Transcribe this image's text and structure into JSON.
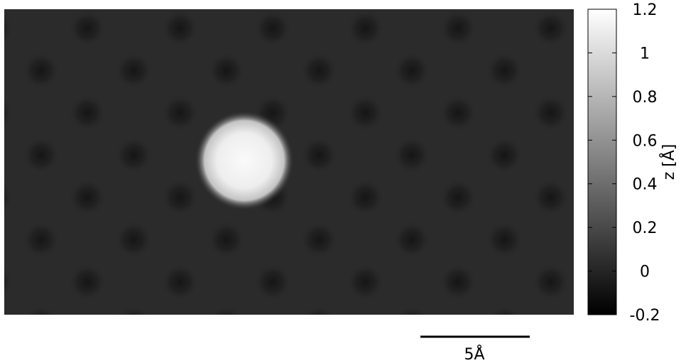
{
  "chart_data": {
    "type": "heatmap",
    "title": "",
    "colormap": "grayscale",
    "colorbar": {
      "label": "z [Å]",
      "range": [
        -0.2,
        1.2
      ],
      "ticks": [
        {
          "value": 1.2,
          "label": "1.2"
        },
        {
          "value": 1.0,
          "label": "1"
        },
        {
          "value": 0.8,
          "label": "0.8"
        },
        {
          "value": 0.6,
          "label": "0.6"
        },
        {
          "value": 0.4,
          "label": "0.4"
        },
        {
          "value": 0.2,
          "label": "0.2"
        },
        {
          "value": 0.0,
          "label": "0"
        },
        {
          "value": -0.2,
          "label": "-0.2"
        }
      ]
    },
    "scale_bar": {
      "label": "5Å",
      "length": 5,
      "unit": "Å"
    },
    "features": [
      {
        "type": "periodic-depressions",
        "pattern": "hexagonal lattice",
        "z_background": 0.1,
        "z_minimum": -0.1
      },
      {
        "type": "adsorbate-bump",
        "z_peak": 1.2
      }
    ]
  }
}
